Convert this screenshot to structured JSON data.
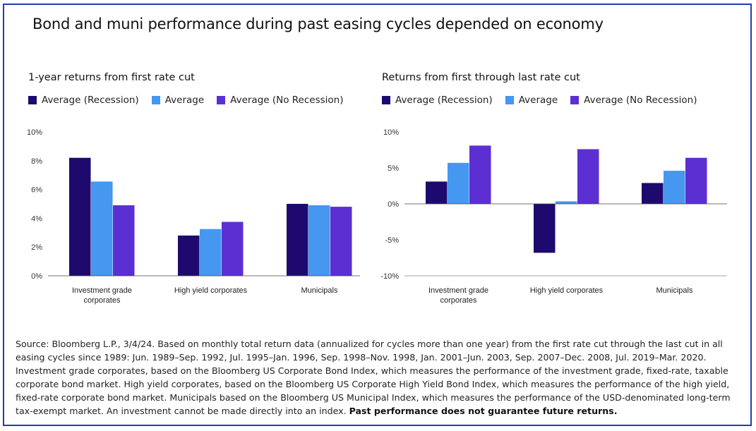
{
  "title": "Bond and muni performance during past easing cycles depended on economy",
  "legend": [
    {
      "label": "Average (Recession)",
      "color": "#1e0a6e"
    },
    {
      "label": "Average",
      "color": "#4597f0"
    },
    {
      "label": "Average (No Recession)",
      "color": "#5c2fd3"
    }
  ],
  "chart_data": [
    {
      "type": "bar",
      "title": "1-year returns from first rate cut",
      "categories": [
        "Investment grade corporates",
        "High yield corporates",
        "Municipals"
      ],
      "category_lines": [
        [
          "Investment grade",
          "corporates"
        ],
        [
          "High yield corporates"
        ],
        [
          "Municipals"
        ]
      ],
      "series": [
        {
          "name": "Average (Recession)",
          "values": [
            8.2,
            2.8,
            5.0
          ]
        },
        {
          "name": "Average",
          "values": [
            6.55,
            3.25,
            4.9
          ]
        },
        {
          "name": "Average (No Recession)",
          "values": [
            4.9,
            3.75,
            4.8
          ]
        }
      ],
      "ylim": [
        0,
        10
      ],
      "yticks": [
        0,
        2,
        4,
        6,
        8,
        10
      ],
      "ytick_labels": [
        "0%",
        "2%",
        "4%",
        "6%",
        "8%",
        "10%"
      ],
      "grid": false,
      "legend_position": "top-left"
    },
    {
      "type": "bar",
      "title": "Returns from first through last rate cut",
      "categories": [
        "Investment grade corporates",
        "High yield corporates",
        "Municipals"
      ],
      "category_lines": [
        [
          "Investment grade",
          "corporates"
        ],
        [
          "High yield corporates"
        ],
        [
          "Municipals"
        ]
      ],
      "series": [
        {
          "name": "Average (Recession)",
          "values": [
            3.1,
            -6.8,
            2.9
          ]
        },
        {
          "name": "Average",
          "values": [
            5.7,
            0.35,
            4.6
          ]
        },
        {
          "name": "Average (No Recession)",
          "values": [
            8.1,
            7.6,
            6.4
          ]
        }
      ],
      "ylim": [
        -10,
        10
      ],
      "yticks": [
        -10,
        -5,
        0,
        5,
        10
      ],
      "ytick_labels": [
        "-10%",
        "-5%",
        "0%",
        "5%",
        "10%"
      ],
      "grid": false,
      "legend_position": "top-left"
    }
  ],
  "footnote": {
    "text": "Source: Bloomberg L.P., 3/4/24. Based on monthly total return data (annualized for cycles more than one year) from the first rate cut through the last cut in all easing cycles since 1989: Jun. 1989–Sep. 1992, Jul. 1995–Jan. 1996, Sep. 1998–Nov. 1998, Jan. 2001–Jun. 2003, Sep. 2007–Dec. 2008, Jul. 2019–Mar. 2020. Investment grade corporates, based on the Bloomberg US Corporate Bond Index, which measures the performance of the investment grade, fixed-rate, taxable corporate bond market. High yield corporates, based on the Bloomberg US Corporate High Yield Bond Index, which measures the performance of the high yield, fixed-rate corporate bond market. Municipals based on the Bloomberg US Municipal Index, which measures the performance of the USD-denominated long-term tax-exempt market. An investment cannot be made directly into an index.",
    "bold": "Past performance does not guarantee future returns."
  }
}
